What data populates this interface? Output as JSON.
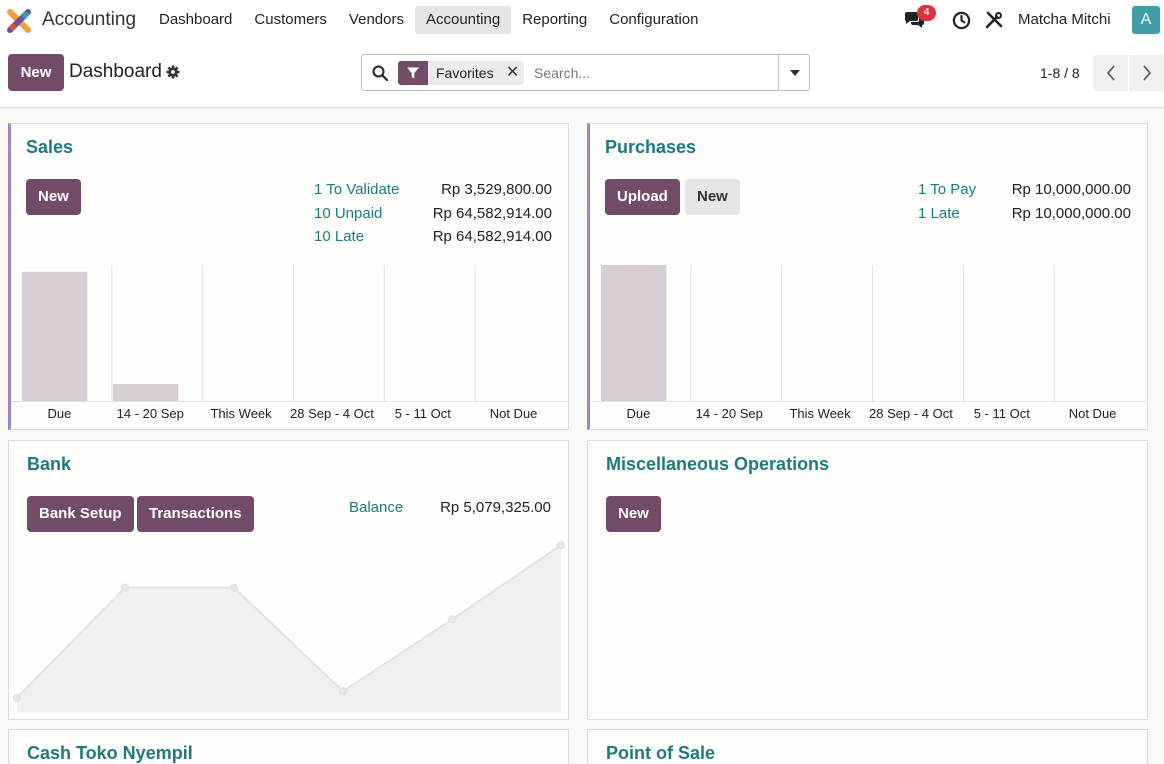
{
  "app": {
    "name": "Accounting",
    "logo_icon": "odoo-accounting-logo-icon"
  },
  "navbar": {
    "menu": [
      "Dashboard",
      "Customers",
      "Vendors",
      "Accounting",
      "Reporting",
      "Configuration"
    ],
    "active_menu": "Accounting",
    "chat_badge": "4",
    "user_name": "Matcha Mitchi",
    "avatar_letter": "A",
    "avatar_color": "#3f9ea8"
  },
  "control_panel": {
    "new_label": "New",
    "title": "Dashboard",
    "search": {
      "facet_label": "Favorites",
      "placeholder": "Search..."
    },
    "pager": "1-8 / 8"
  },
  "colors": {
    "primary": "#714b67",
    "link": "#1d7b80",
    "bar": "#d8cfd6",
    "accent_border": "#9b84cf"
  },
  "cards": {
    "sales": {
      "title": "Sales",
      "new_label": "New",
      "stats": [
        {
          "label": "1 To Validate",
          "amount": "Rp 3,529,800.00"
        },
        {
          "label": "10 Unpaid",
          "amount": "Rp 64,582,914.00"
        },
        {
          "label": "10 Late",
          "amount": "Rp 64,582,914.00"
        }
      ]
    },
    "purchases": {
      "title": "Purchases",
      "upload_label": "Upload",
      "new_label": "New",
      "stats": [
        {
          "label": "1 To Pay",
          "amount": "Rp 10,000,000.00"
        },
        {
          "label": "1 Late",
          "amount": "Rp 10,000,000.00"
        }
      ]
    },
    "bank": {
      "title": "Bank",
      "setup_label": "Bank Setup",
      "transactions_label": "Transactions",
      "balance_label": "Balance",
      "balance_amount": "Rp 5,079,325.00"
    },
    "misc": {
      "title": "Miscellaneous Operations",
      "new_label": "New"
    },
    "cash": {
      "title": "Cash Toko Nyempil"
    },
    "pos": {
      "title": "Point of Sale"
    }
  },
  "chart_data": [
    {
      "type": "bar",
      "categories": [
        "Due",
        "14 - 20 Sep",
        "This Week",
        "28 Sep - 4 Oct",
        "5 - 11 Oct",
        "Not Due"
      ],
      "values": [
        64.6,
        8.5,
        0,
        0,
        0,
        0
      ],
      "ylim": [
        0,
        68
      ],
      "grid": true
    },
    {
      "type": "bar",
      "categories": [
        "Due",
        "14 - 20 Sep",
        "This Week",
        "28 Sep - 4 Oct",
        "5 - 11 Oct",
        "Not Due"
      ],
      "values": [
        10,
        0,
        0,
        0,
        0,
        0
      ],
      "ylim": [
        0,
        10
      ],
      "grid": true
    },
    {
      "type": "area",
      "x": [
        0,
        1,
        2,
        3,
        4,
        5
      ],
      "values": [
        0.2,
        5.4,
        5.4,
        0.5,
        3.9,
        7.4
      ],
      "ylim": [
        0,
        7.6
      ],
      "grid": false
    }
  ]
}
